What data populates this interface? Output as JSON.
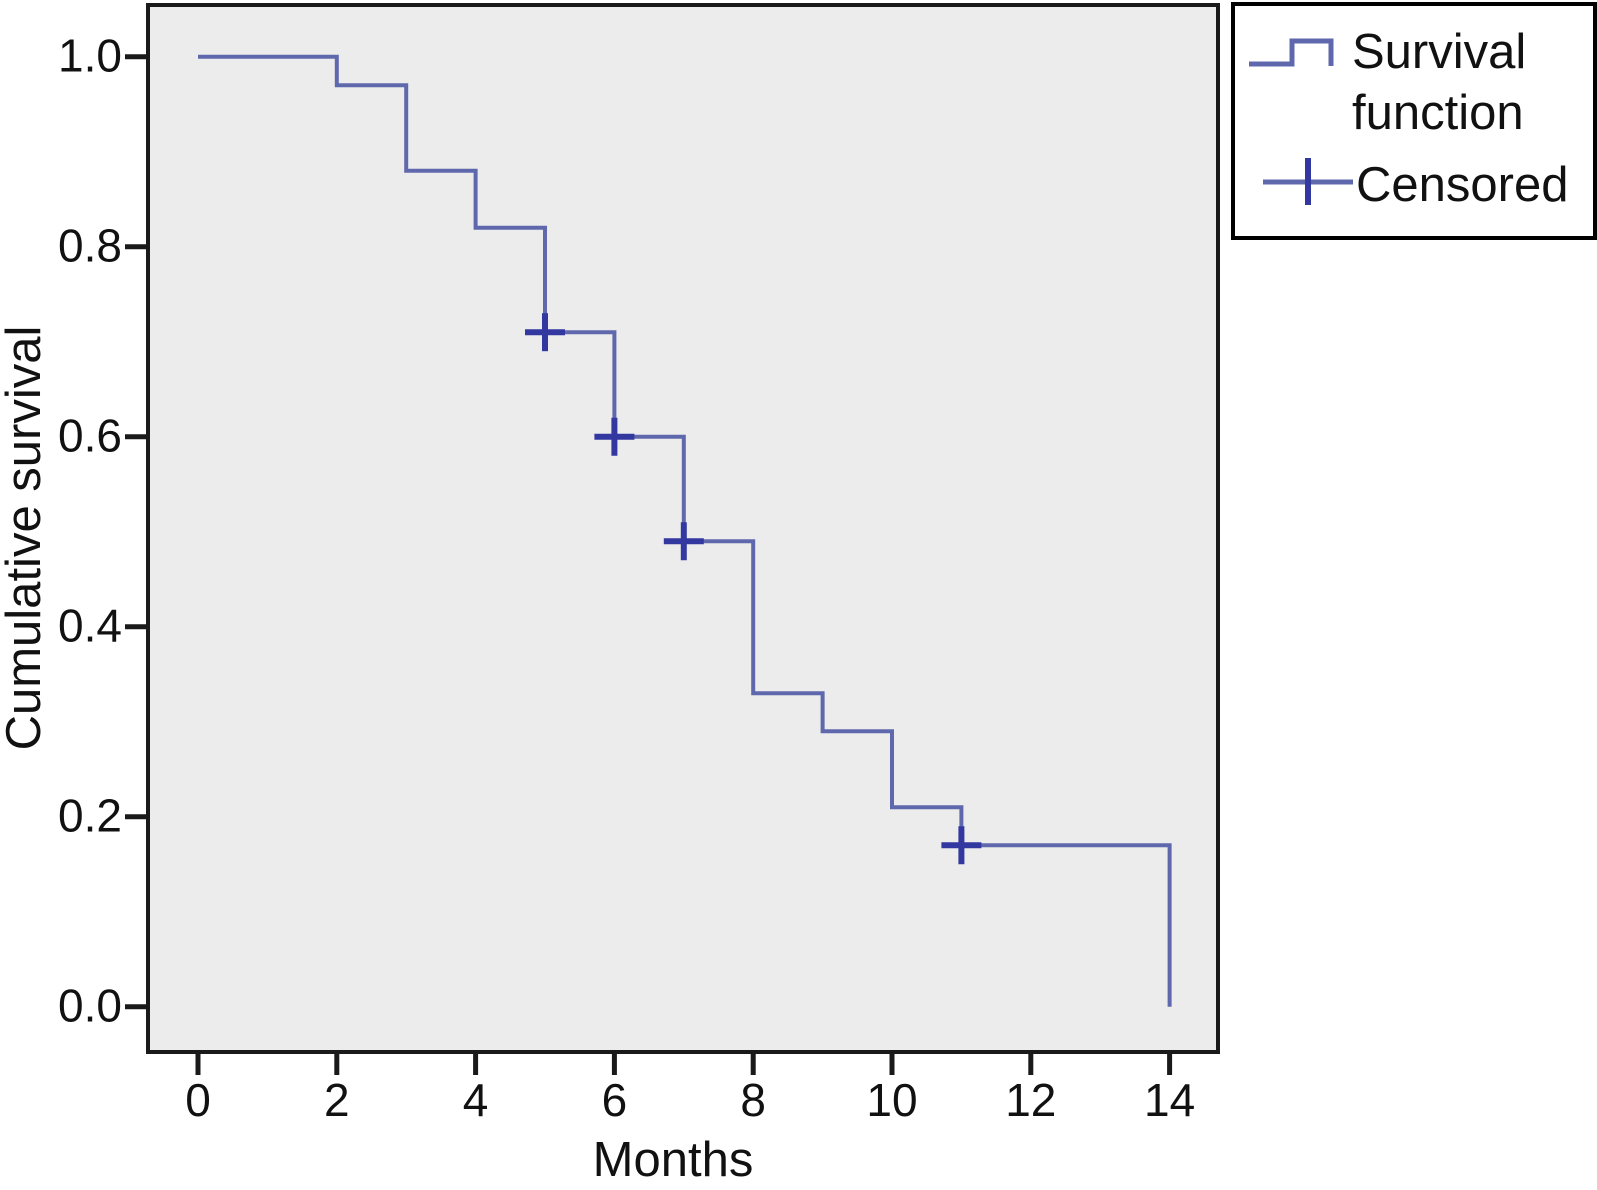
{
  "figure": {
    "background": "#ffffff",
    "frame_color": "#1a1a1a"
  },
  "chart_data": {
    "type": "line",
    "step": true,
    "title": "",
    "xlabel": "Months",
    "ylabel": "Cumulative survival",
    "xlim": [
      -0.7,
      14.7
    ],
    "ylim": [
      -0.05,
      1.05
    ],
    "grid": false,
    "plot_background": "#ececec",
    "x_ticks": [
      0,
      2,
      4,
      6,
      8,
      10,
      12,
      14
    ],
    "x_tick_labels": [
      "0",
      "2",
      "4",
      "6",
      "8",
      "10",
      "12",
      "14"
    ],
    "y_ticks": [
      0.0,
      0.2,
      0.4,
      0.6,
      0.8,
      1.0
    ],
    "y_tick_labels": [
      "0.0",
      "0.2",
      "0.4",
      "0.6",
      "0.8",
      "1.0"
    ],
    "series": [
      {
        "name": "Survival function",
        "color": "#5f68ac",
        "times": [
          0,
          2,
          3,
          4,
          5,
          6,
          7,
          8,
          9,
          10,
          11,
          14
        ],
        "survival": [
          1.0,
          0.97,
          0.88,
          0.82,
          0.71,
          0.6,
          0.49,
          0.33,
          0.29,
          0.21,
          0.17,
          0.0
        ]
      }
    ],
    "censored": {
      "name": "Censored",
      "color": "#3238a0",
      "points": [
        {
          "t": 5,
          "s": 0.71
        },
        {
          "t": 6,
          "s": 0.6
        },
        {
          "t": 7,
          "s": 0.49
        },
        {
          "t": 11,
          "s": 0.17
        }
      ]
    },
    "legend": {
      "position": "top-right",
      "items": [
        {
          "label": "Survival function",
          "label_lines": [
            "Survival",
            "function"
          ],
          "marker": "step-line"
        },
        {
          "label": "Censored",
          "label_lines": [
            "Censored"
          ],
          "marker": "plus-cross"
        }
      ]
    }
  }
}
